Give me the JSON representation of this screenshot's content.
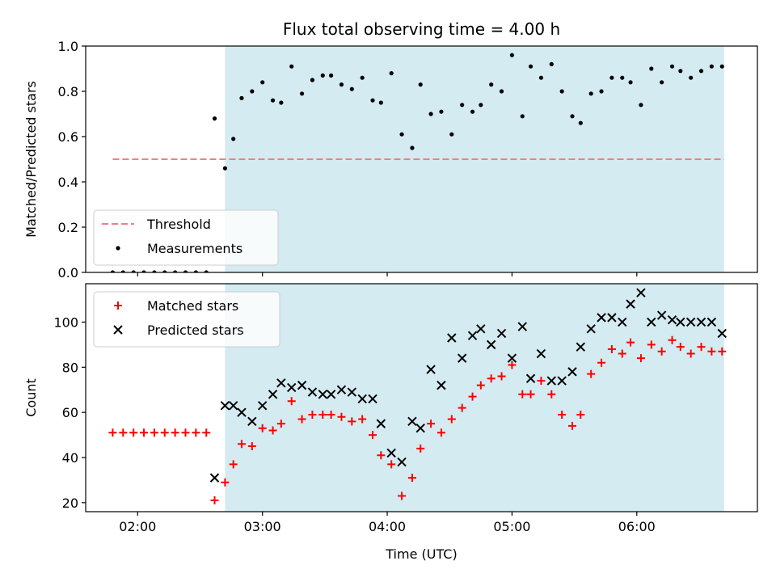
{
  "chart_data": {
    "title": "Flux total observing time = 4.00 h",
    "xlabel": "Time (UTC)",
    "x_ticks": [
      "02:00",
      "03:00",
      "04:00",
      "05:00",
      "06:00"
    ],
    "x_tick_minutes": [
      120,
      180,
      240,
      300,
      360
    ],
    "xlim_minutes": [
      95,
      418
    ],
    "observing_window_minutes": [
      162,
      402
    ],
    "shade_color": "#d4ebf1",
    "panels": [
      {
        "type": "scatter",
        "ylabel": "Matched/Predicted stars",
        "ylim": [
          0,
          1.0
        ],
        "y_ticks": [
          0.0,
          0.2,
          0.4,
          0.6,
          0.8,
          1.0
        ],
        "threshold": {
          "name": "Threshold",
          "value": 0.5,
          "x_range": [
            108,
            402
          ],
          "color": "#f08080"
        },
        "series": [
          {
            "name": "Measurements",
            "color": "#000000",
            "x": [
              108,
              113,
              118,
              123,
              128,
              133,
              138,
              143,
              148,
              153,
              157,
              162,
              166,
              170,
              175,
              180,
              185,
              189,
              194,
              199,
              204,
              209,
              213,
              218,
              223,
              228,
              233,
              237,
              242,
              247,
              252,
              256,
              261,
              266,
              271,
              276,
              281,
              285,
              290,
              295,
              300,
              305,
              309,
              314,
              319,
              324,
              329,
              333,
              338,
              343,
              348,
              353,
              357,
              362,
              367,
              372,
              377,
              381,
              386,
              391,
              396,
              401
            ],
            "y": [
              0,
              0,
              0,
              0,
              0,
              0,
              0,
              0,
              0,
              0,
              0.68,
              0.46,
              0.59,
              0.77,
              0.8,
              0.84,
              0.76,
              0.75,
              0.91,
              0.79,
              0.85,
              0.87,
              0.87,
              0.83,
              0.81,
              0.86,
              0.76,
              0.75,
              0.88,
              0.61,
              0.55,
              0.83,
              0.7,
              0.71,
              0.61,
              0.74,
              0.71,
              0.74,
              0.83,
              0.8,
              0.96,
              0.69,
              0.91,
              0.86,
              0.92,
              0.8,
              0.69,
              0.66,
              0.79,
              0.8,
              0.86,
              0.86,
              0.84,
              0.74,
              0.9,
              0.84,
              0.91,
              0.89,
              0.86,
              0.89,
              0.91,
              0.91
            ]
          }
        ]
      },
      {
        "type": "scatter",
        "ylabel": "Count",
        "ylim": [
          16,
          117
        ],
        "y_ticks": [
          20,
          40,
          60,
          80,
          100
        ],
        "series": [
          {
            "name": "Matched stars",
            "marker": "+",
            "color": "#ff0000",
            "x": [
              108,
              113,
              118,
              123,
              128,
              133,
              138,
              143,
              148,
              153,
              157,
              162,
              166,
              170,
              175,
              180,
              185,
              189,
              194,
              199,
              204,
              209,
              213,
              218,
              223,
              228,
              233,
              237,
              242,
              247,
              252,
              256,
              261,
              266,
              271,
              276,
              281,
              285,
              290,
              295,
              300,
              305,
              309,
              314,
              319,
              324,
              329,
              333,
              338,
              343,
              348,
              353,
              357,
              362,
              367,
              372,
              377,
              381,
              386,
              391,
              396,
              401
            ],
            "y": [
              51,
              51,
              51,
              51,
              51,
              51,
              51,
              51,
              51,
              51,
              21,
              29,
              37,
              46,
              45,
              53,
              52,
              55,
              65,
              57,
              59,
              59,
              59,
              58,
              56,
              57,
              50,
              41,
              37,
              23,
              31,
              44,
              55,
              51,
              57,
              62,
              67,
              72,
              75,
              76,
              81,
              68,
              68,
              74,
              68,
              59,
              54,
              59,
              77,
              82,
              88,
              86,
              91,
              84,
              90,
              87,
              92,
              89,
              86,
              89,
              87,
              87
            ]
          },
          {
            "name": "Predicted stars",
            "marker": "x",
            "color": "#000000",
            "x": [
              157,
              162,
              166,
              170,
              175,
              180,
              185,
              189,
              194,
              199,
              204,
              209,
              213,
              218,
              223,
              228,
              233,
              237,
              242,
              247,
              252,
              256,
              261,
              266,
              271,
              276,
              281,
              285,
              290,
              295,
              300,
              305,
              309,
              314,
              319,
              324,
              329,
              333,
              338,
              343,
              348,
              353,
              357,
              362,
              367,
              372,
              377,
              381,
              386,
              391,
              396,
              401
            ],
            "y": [
              31,
              63,
              63,
              60,
              56,
              63,
              68,
              73,
              71,
              72,
              69,
              68,
              68,
              70,
              69,
              66,
              66,
              55,
              42,
              38,
              56,
              53,
              79,
              72,
              93,
              84,
              94,
              97,
              90,
              95,
              84,
              98,
              75,
              86,
              74,
              74,
              78,
              89,
              97,
              102,
              102,
              100,
              108,
              113,
              100,
              103,
              101,
              100,
              100,
              100,
              100,
              95
            ]
          }
        ]
      }
    ]
  }
}
